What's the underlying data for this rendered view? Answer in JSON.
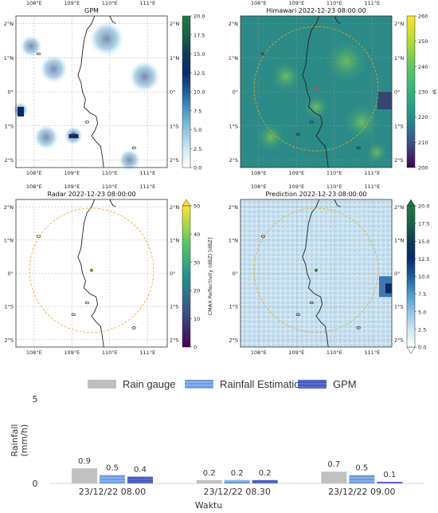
{
  "panels": [
    {
      "id": "gpm",
      "title": "GPM",
      "lon_ticks": [
        "108°E",
        "109°E",
        "110°E",
        "111°E"
      ],
      "lat_ticks_left": [
        "2°N",
        "1°N",
        "0°",
        "1°S",
        "2°S"
      ],
      "lat_ticks_right": [
        "2°N",
        "1°N",
        "0°",
        "1°S",
        "2°S"
      ],
      "colorbar": {
        "ticks": [
          "0.0",
          "2.5",
          "5.0",
          "7.5",
          "10.0",
          "12.5",
          "15.0",
          "17.5",
          "20.0"
        ],
        "label": "",
        "colors": [
          "#ffffff",
          "#cfe6f2",
          "#8ec6df",
          "#4a9cc8",
          "#1c5e9e",
          "#0b2a6b",
          "#0e3d50",
          "#17624a",
          "#1f7a3d"
        ]
      }
    },
    {
      "id": "himawari",
      "title": "Himawari 2022-12-23 08:00:00",
      "lon_ticks": [
        "108°E",
        "109°E",
        "110°E",
        "111°E"
      ],
      "lat_ticks_left": [
        "2°N",
        "1°N",
        "0°",
        "1°S",
        "2°S"
      ],
      "lat_ticks_right": [
        "2°N",
        "1°N",
        "0°",
        "1°S",
        "2°S"
      ],
      "colorbar": {
        "ticks": [
          "200",
          "210",
          "220",
          "230",
          "240",
          "250",
          "260"
        ],
        "label": "IR",
        "colors": [
          "#440154",
          "#3b528b",
          "#21918c",
          "#2fb47c",
          "#5ec962",
          "#addc30",
          "#fde725"
        ]
      }
    },
    {
      "id": "radar",
      "title": "Radar 2022-12-23 08:00:00",
      "lon_ticks": [
        "108°E",
        "109°E",
        "110°E",
        "111°E"
      ],
      "lat_ticks_left": [
        "2°N",
        "1°N",
        "0°",
        "1°S",
        "2°S"
      ],
      "lat_ticks_right": [
        "2°N",
        "1°N",
        "0°",
        "1°S",
        "2°S"
      ],
      "colorbar": {
        "ticks": [
          "0",
          "10",
          "20",
          "30",
          "40",
          "50"
        ],
        "label": "CMAX Reflectivity (dBZ) [dBZ]",
        "colors": [
          "#440154",
          "#3b528b",
          "#21918c",
          "#5ec962",
          "#fde725"
        ]
      }
    },
    {
      "id": "prediction",
      "title": "Prediction 2022-12-23 08:00:00",
      "lon_ticks": [
        "108°E",
        "109°E",
        "110°E",
        "111°E"
      ],
      "lat_ticks_left": [
        "2°N",
        "1°N",
        "0°",
        "1°S",
        "2°S"
      ],
      "lat_ticks_right": [
        "2°N",
        "1°N",
        "0°",
        "1°S",
        "2°S"
      ],
      "colorbar": {
        "ticks": [
          "0.0",
          "2.5",
          "5.0",
          "7.5",
          "10.0",
          "12.5",
          "15.0",
          "17.5",
          "20.0"
        ],
        "label": "",
        "colors": [
          "#ffffff",
          "#cfe6f2",
          "#8ec6df",
          "#4a9cc8",
          "#1c5e9e",
          "#0b2a6b",
          "#0e3d50",
          "#17624a",
          "#1f7a3d"
        ]
      }
    }
  ],
  "colors": {
    "rain_gauge": "#bdbdbd",
    "rainfall_estimation": "#6f9fe0",
    "gpm": "#4a5fc1",
    "circle": "#e8a62a",
    "coast": "#222222"
  },
  "chart_data": {
    "type": "bar",
    "categories": [
      "23/12/22 08.00",
      "23/12/22 08.30",
      "23/12/22 09.00"
    ],
    "series": [
      {
        "name": "Rain gauge",
        "values": [
          0.9,
          0.2,
          0.7
        ]
      },
      {
        "name": "Rainfall Estimation",
        "values": [
          0.5,
          0.2,
          0.5
        ]
      },
      {
        "name": "GPM",
        "values": [
          0.4,
          0.2,
          0.1
        ]
      }
    ],
    "value_labels": [
      [
        "0.9",
        "0.5",
        "0.4"
      ],
      [
        "0.2",
        "0.2",
        "0.2"
      ],
      [
        "0.7",
        "0.5",
        "0.1"
      ]
    ],
    "ylabel": "Rainfall\n(mm/h)",
    "xlabel": "Waktu",
    "yticks": [
      "0",
      "5"
    ],
    "ylim": [
      0,
      5
    ],
    "legend_position": "top"
  }
}
